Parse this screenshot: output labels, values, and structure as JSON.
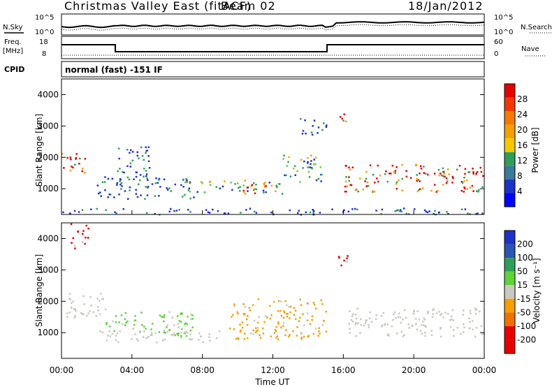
{
  "header": {
    "station": "Christmas Valley East (fitACF)",
    "beam": "Beam 02",
    "date": "18/Jan/2012"
  },
  "noise_panel": {
    "left_label": "N.Sky",
    "left_ticks": [
      "10^5",
      "10^0"
    ],
    "right_label": "N.Search",
    "right_ticks": [
      "10^5",
      "10^0"
    ]
  },
  "freq_panel": {
    "left_label_1": "Freq.",
    "left_label_2": "[MHz]",
    "left_ticks": [
      "18",
      "8"
    ],
    "right_label": "Nave",
    "right_ticks": [
      "60",
      "0"
    ]
  },
  "cpid": {
    "label": "CPID",
    "value": "normal (fast) -151 IF"
  },
  "colors": {
    "red": "#e60000",
    "orange": "#f5a000",
    "green_light": "#5fd23c",
    "teal": "#2e9e5a",
    "blue": "#1e32c8",
    "gray": "#c8c8c0"
  },
  "chart_data": [
    {
      "type": "heatmap",
      "title": "",
      "xlabel": "",
      "ylabel": "Slant Range [km]",
      "x_ticks": [
        "00:00",
        "04:00",
        "08:00",
        "12:00",
        "16:00",
        "20:00",
        "00:00"
      ],
      "xlim_hours": [
        0,
        24
      ],
      "y_ticks": [
        1000,
        2000,
        3000,
        4000
      ],
      "ylim": [
        180,
        4500
      ],
      "colorbar": {
        "label": "Power [dB]",
        "ticks": [
          "28",
          "24",
          "20",
          "16",
          "12",
          "8",
          "4"
        ],
        "range": [
          0,
          30
        ]
      },
      "regions": [
        {
          "name": "early-arc",
          "t": [
            0.0,
            1.4
          ],
          "r": [
            1500,
            2200
          ],
          "level": "high"
        },
        {
          "name": "evening-band",
          "t": [
            2.0,
            7.5
          ],
          "r": [
            700,
            1400
          ],
          "level": "low"
        },
        {
          "name": "plumes-04",
          "t": [
            3.0,
            5.0
          ],
          "r": [
            1300,
            2400
          ],
          "level": "low"
        },
        {
          "name": "midday-band",
          "t": [
            7.0,
            12.5
          ],
          "r": [
            900,
            1300
          ],
          "level": "mid"
        },
        {
          "name": "strong-1100",
          "t": [
            10.0,
            12.5
          ],
          "r": [
            850,
            1200
          ],
          "level": "high"
        },
        {
          "name": "rise-1400",
          "t": [
            12.5,
            14.8
          ],
          "r": [
            1200,
            2100
          ],
          "level": "mid"
        },
        {
          "name": "patch-3000",
          "t": [
            13.5,
            15.0
          ],
          "r": [
            2750,
            3300
          ],
          "level": "low"
        },
        {
          "name": "patch-3300",
          "t": [
            15.5,
            16.2
          ],
          "r": [
            3100,
            3500
          ],
          "level": "high"
        },
        {
          "name": "dawn-band",
          "t": [
            16.0,
            24.0
          ],
          "r": [
            900,
            1800
          ],
          "level": "high"
        },
        {
          "name": "ground-near",
          "t": [
            0.0,
            24.0
          ],
          "r": [
            200,
            400
          ],
          "level": "low"
        }
      ]
    },
    {
      "type": "heatmap",
      "title": "",
      "xlabel": "Time UT",
      "ylabel": "Slant Range [km]",
      "x_ticks": [
        "00:00",
        "04:00",
        "08:00",
        "12:00",
        "16:00",
        "20:00",
        "00:00"
      ],
      "xlim_hours": [
        0,
        24
      ],
      "y_ticks": [
        1000,
        2000,
        3000,
        4000
      ],
      "ylim": [
        180,
        4500
      ],
      "colorbar": {
        "label": "Velocity [m s⁻¹]",
        "ticks": [
          "200",
          "100",
          "50",
          "15",
          "-15",
          "-50",
          "-100",
          "-200"
        ]
      },
      "regions": [
        {
          "name": "early-red",
          "t": [
            0.5,
            1.5
          ],
          "r": [
            3700,
            4500
          ],
          "value": "-200"
        },
        {
          "name": "arc-gray",
          "t": [
            0.0,
            2.5
          ],
          "r": [
            1500,
            2300
          ],
          "value": "0"
        },
        {
          "name": "green-0400",
          "t": [
            2.5,
            7.5
          ],
          "r": [
            900,
            1700
          ],
          "value": "50"
        },
        {
          "name": "gray-band",
          "t": [
            2.0,
            9.0
          ],
          "r": [
            700,
            1100
          ],
          "value": "0"
        },
        {
          "name": "orange-midday",
          "t": [
            9.5,
            15.0
          ],
          "r": [
            800,
            2100
          ],
          "value": "-50"
        },
        {
          "name": "red-3300",
          "t": [
            15.5,
            16.5
          ],
          "r": [
            3100,
            3500
          ],
          "value": "-200"
        },
        {
          "name": "gray-dawn",
          "t": [
            16.0,
            24.0
          ],
          "r": [
            900,
            1800
          ],
          "value": "0"
        }
      ]
    }
  ]
}
